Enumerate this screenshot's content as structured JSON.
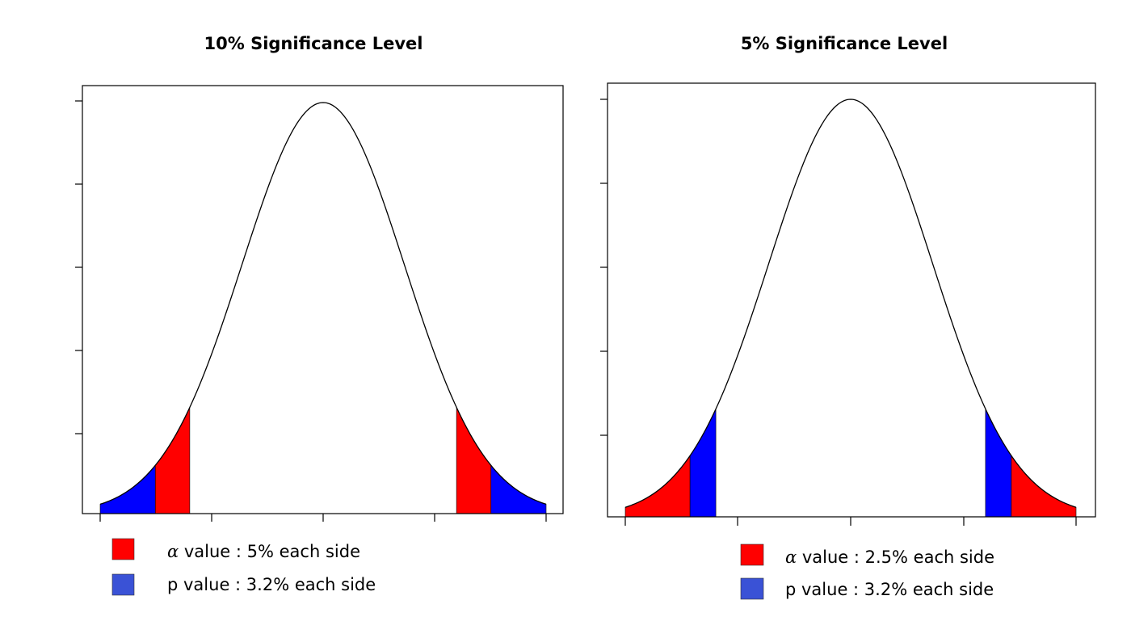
{
  "chart_data": [
    {
      "type": "area",
      "title": "10% Significance Level",
      "xlim": [
        -2.75,
        2.75
      ],
      "ylim": [
        0,
        0.4
      ],
      "curve_color": "#000000",
      "shaded_regions": [
        {
          "label": "p value",
          "color": "#0000ff",
          "x": [
            -2.75,
            -2.07
          ]
        },
        {
          "label": "alpha value",
          "color": "#ff0000",
          "x": [
            -2.07,
            -1.645
          ]
        },
        {
          "label": "alpha value",
          "color": "#ff0000",
          "x": [
            1.645,
            2.07
          ]
        },
        {
          "label": "p value",
          "color": "#0000ff",
          "x": [
            2.07,
            2.75
          ]
        }
      ],
      "legend": [
        {
          "symbol": "α",
          "text": " value : 5% each side",
          "color": "#ff0000"
        },
        {
          "symbol": "",
          "text": "p value : 3.2% each side",
          "color": "#3a52d6"
        }
      ]
    },
    {
      "type": "area",
      "title": "5% Significance Level",
      "xlim": [
        -2.75,
        2.75
      ],
      "ylim": [
        0,
        0.4
      ],
      "curve_color": "#000000",
      "shaded_regions": [
        {
          "label": "alpha value",
          "color": "#ff0000",
          "x": [
            -2.75,
            -1.96
          ]
        },
        {
          "label": "p value",
          "color": "#0000ff",
          "x": [
            -1.96,
            -1.645
          ]
        },
        {
          "label": "p value",
          "color": "#0000ff",
          "x": [
            1.645,
            1.96
          ]
        },
        {
          "label": "alpha value",
          "color": "#ff0000",
          "x": [
            1.96,
            2.75
          ]
        }
      ],
      "legend": [
        {
          "symbol": "α",
          "text": " value : 2.5% each side",
          "color": "#ff0000"
        },
        {
          "symbol": "",
          "text": "p value : 3.2% each side",
          "color": "#3a52d6"
        }
      ]
    }
  ]
}
